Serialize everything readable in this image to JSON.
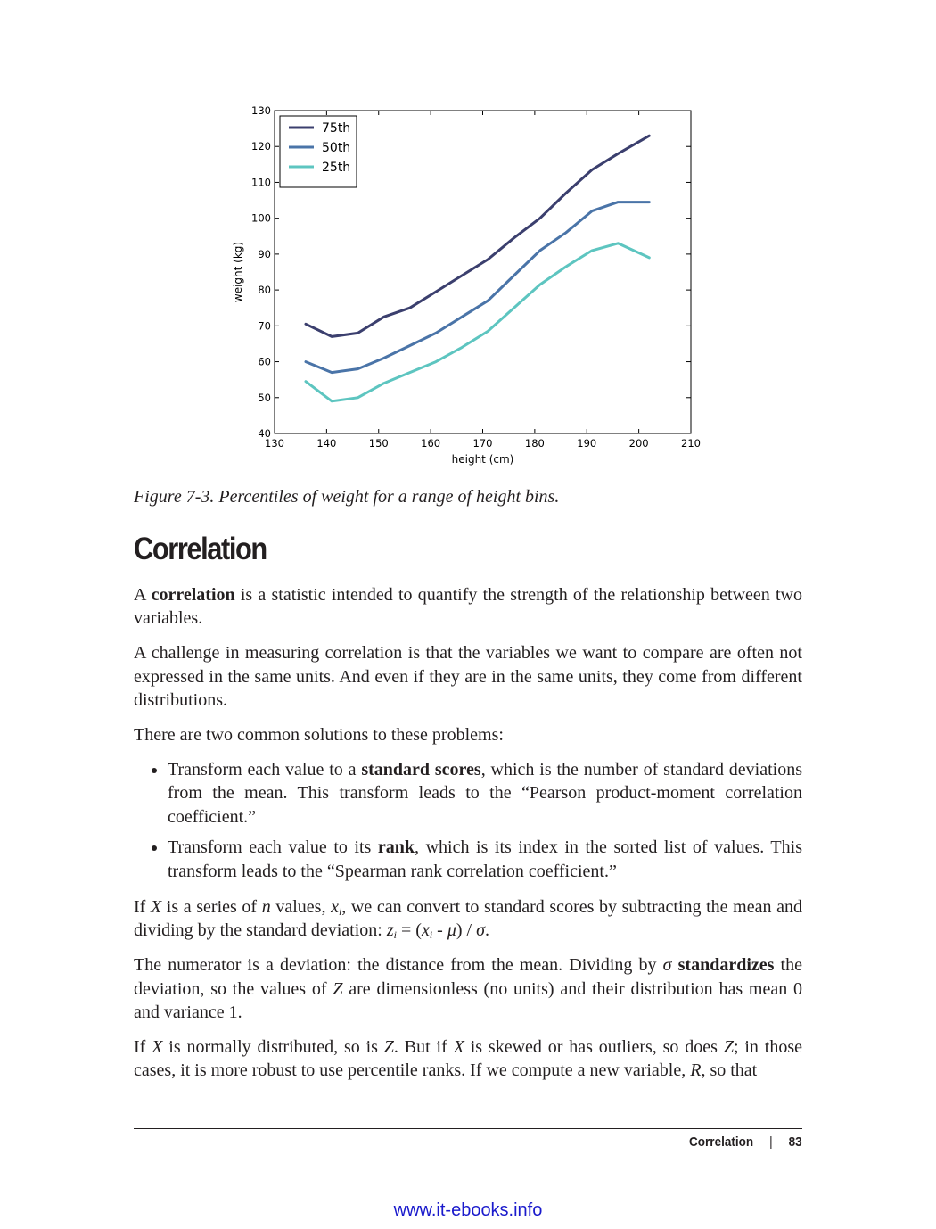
{
  "chart_data": {
    "type": "line",
    "xlabel": "height (cm)",
    "ylabel": "weight (kg)",
    "xlim": [
      130,
      210
    ],
    "ylim": [
      40,
      130
    ],
    "xticks": [
      130,
      140,
      150,
      160,
      170,
      180,
      190,
      200,
      210
    ],
    "yticks": [
      40,
      50,
      60,
      70,
      80,
      90,
      100,
      110,
      120,
      130
    ],
    "grid": false,
    "legend_position": "top-left",
    "x": [
      136,
      141,
      146,
      151,
      156,
      161,
      166,
      171,
      176,
      181,
      186,
      191,
      196,
      202
    ],
    "series": [
      {
        "name": "75th",
        "color": "#3b3f6e",
        "values": [
          70.5,
          67,
          68,
          72.5,
          75,
          79.5,
          84,
          88.5,
          94.5,
          100,
          107,
          113.5,
          118,
          123
        ]
      },
      {
        "name": "50th",
        "color": "#4a74a8",
        "values": [
          60,
          57,
          58,
          61,
          64.5,
          68,
          72.5,
          77,
          84,
          91,
          96,
          102,
          104.5,
          104.5
        ]
      },
      {
        "name": "25th",
        "color": "#5dc5c0",
        "values": [
          54.5,
          49,
          50,
          54,
          57,
          60,
          64,
          68.5,
          75,
          81.5,
          86.5,
          91,
          93,
          89
        ]
      }
    ]
  },
  "caption": "Figure 7-3. Percentiles of weight for a range of height bins.",
  "section_title": "Correlation",
  "p1": {
    "pre": "A ",
    "bold": "correlation",
    "post": " is a statistic intended to quantify the strength of the relationship between two variables."
  },
  "p2": "A challenge in measuring correlation is that the variables we want to compare are often not expressed in the same units. And even if they are in the same units, they come from different distributions.",
  "p3": "There are two common solutions to these problems:",
  "bullet1": {
    "pre": "Transform each value to a ",
    "bold": "standard scores",
    "post": ", which is the number of standard deviations from the mean. This transform leads to the “Pearson product-moment correlation coefficient.”"
  },
  "bullet2": {
    "pre": "Transform each value to its ",
    "bold": "rank",
    "post": ", which is its index in the sorted list of values. This transform leads to the “Spearman rank correlation coefficient.”"
  },
  "p4": {
    "t1": "If ",
    "X": "X",
    "t2": " is a series of ",
    "n": "n",
    "t3": " values, ",
    "x": "x",
    "i": "i",
    "t4": ", we can convert to standard scores by subtracting the mean and dividing by the standard deviation: ",
    "z": "z",
    "i2": "i",
    "eq": " = (",
    "x2": "x",
    "i3": "i",
    "minus": " - ",
    "mu": "μ",
    "close": ") / ",
    "sigma": "σ",
    "end": "."
  },
  "p5": {
    "t1": "The numerator is a deviation: the distance from the mean. Dividing by ",
    "sigma": "σ",
    "sp": " ",
    "bold": "standardizes",
    "t2": " the deviation, so the values of ",
    "Z": "Z",
    "t3": " are dimensionless (no units) and their distribution has mean 0 and variance 1."
  },
  "p6": {
    "t1": "If ",
    "X": "X",
    "t2": " is normally distributed, so is ",
    "Z": "Z",
    "t3": ". But if ",
    "X2": "X",
    "t4": " is skewed or has outliers, so does ",
    "Z2": "Z",
    "t5": "; in those cases, it is more robust to use percentile ranks. If we compute a new variable, ",
    "R": "R",
    "t6": ", so that"
  },
  "footer": {
    "section": "Correlation",
    "sep": "|",
    "page": "83"
  },
  "watermark": "www.it-ebooks.info"
}
